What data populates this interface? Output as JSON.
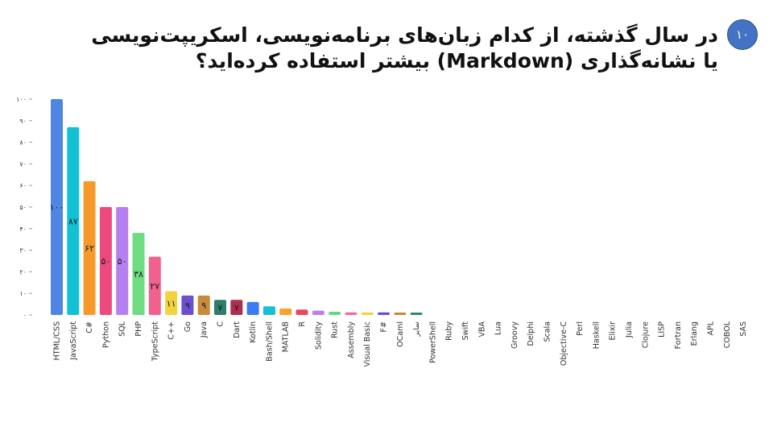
{
  "slide": {
    "number": "۱۰",
    "title": "در سال گذشته، از کدام زبان‌های برنامه‌نویسی، اسکریپت‌نویسی یا نشانه‌گذاری (Markdown) بیشتر استفاده کرده‌اید؟"
  },
  "chart_data": {
    "type": "bar",
    "title": "",
    "xlabel": "",
    "ylabel": "",
    "ylim": [
      0,
      100
    ],
    "yticks": [
      0,
      10,
      20,
      30,
      40,
      50,
      60,
      70,
      80,
      90,
      100
    ],
    "ytick_labels": [
      "۰",
      "۱۰",
      "۲۰",
      "۳۰",
      "۴۰",
      "۵۰",
      "۶۰",
      "۷۰",
      "۸۰",
      "۹۰",
      "۱۰۰"
    ],
    "grid": false,
    "categories": [
      "HTML/CSS",
      "JavaScript",
      "C#",
      "Python",
      "SQL",
      "PHP",
      "TypeScript",
      "C++",
      "Go",
      "Java",
      "C",
      "Dart",
      "Kotlin",
      "Bash/Shell",
      "MATLAB",
      "R",
      "Solidity",
      "Rust",
      "Assembly",
      "Visual Basic",
      "F#",
      "OCaml",
      "سایر",
      "PowerShell",
      "Ruby",
      "Swift",
      "VBA",
      "Lua",
      "Groovy",
      "Delphi",
      "Scala",
      "Objective-C",
      "Perl",
      "Haskell",
      "Elixir",
      "Julia",
      "Clojure",
      "LISP",
      "Fortran",
      "Erlang",
      "APL",
      "COBOL",
      "SAS"
    ],
    "values": [
      100,
      87,
      62,
      50,
      50,
      38,
      27,
      11,
      9,
      9,
      7,
      7,
      6,
      4,
      3,
      2.5,
      2,
      1.5,
      1.2,
      1.2,
      1.2,
      1,
      1,
      0,
      0,
      0,
      0,
      0,
      0,
      0,
      0,
      0,
      0,
      0,
      0,
      0,
      0,
      0,
      0,
      0,
      0,
      0,
      0
    ],
    "data_labels": [
      "۱۰۰",
      "۸۷",
      "۶۲",
      "۵۰",
      "۵۰",
      "۳۸",
      "۲۷",
      "۱۱",
      "۹",
      "۹",
      "۷",
      "۷",
      "",
      "",
      "",
      "",
      "",
      "",
      "",
      "",
      "",
      "",
      "",
      "",
      "",
      "",
      "",
      "",
      "",
      "",
      "",
      "",
      "",
      "",
      "",
      "",
      "",
      "",
      "",
      "",
      "",
      "",
      ""
    ],
    "colors": [
      "#4f86e3",
      "#12c2d4",
      "#f59a2a",
      "#ec4a7d",
      "#b57ff0",
      "#6fdc82",
      "#f0628d",
      "#f2d33f",
      "#6b4fd3",
      "#c98a3a",
      "#2e7d6b",
      "#b02d52",
      "#3b7cf0",
      "#16c0d2",
      "#f5a22e",
      "#e8475e",
      "#bb80f0",
      "#66d980",
      "#f06aa0",
      "#f2d33f",
      "#6a4fd0",
      "#c48a3a",
      "#2e8a6b",
      "#2e8a6b",
      "#2e8a6b",
      "#2e8a6b",
      "#2e8a6b",
      "#2e8a6b",
      "#2e8a6b",
      "#2e8a6b",
      "#2e8a6b",
      "#2e8a6b",
      "#2e8a6b",
      "#2e8a6b",
      "#2e8a6b",
      "#2e8a6b",
      "#2e8a6b",
      "#2e8a6b",
      "#2e8a6b",
      "#2e8a6b",
      "#2e8a6b",
      "#2e8a6b",
      "#2e8a6b"
    ],
    "label_colors": [
      "#1a1a1a",
      "#1a1a1a",
      "#1a1a1a",
      "#ffffff",
      "#1a1a1a",
      "#1a1a1a",
      "#1a1a1a",
      "#1a1a1a",
      "#ffffff",
      "#1a1a1a",
      "#ffffff",
      "#ffffff"
    ]
  }
}
